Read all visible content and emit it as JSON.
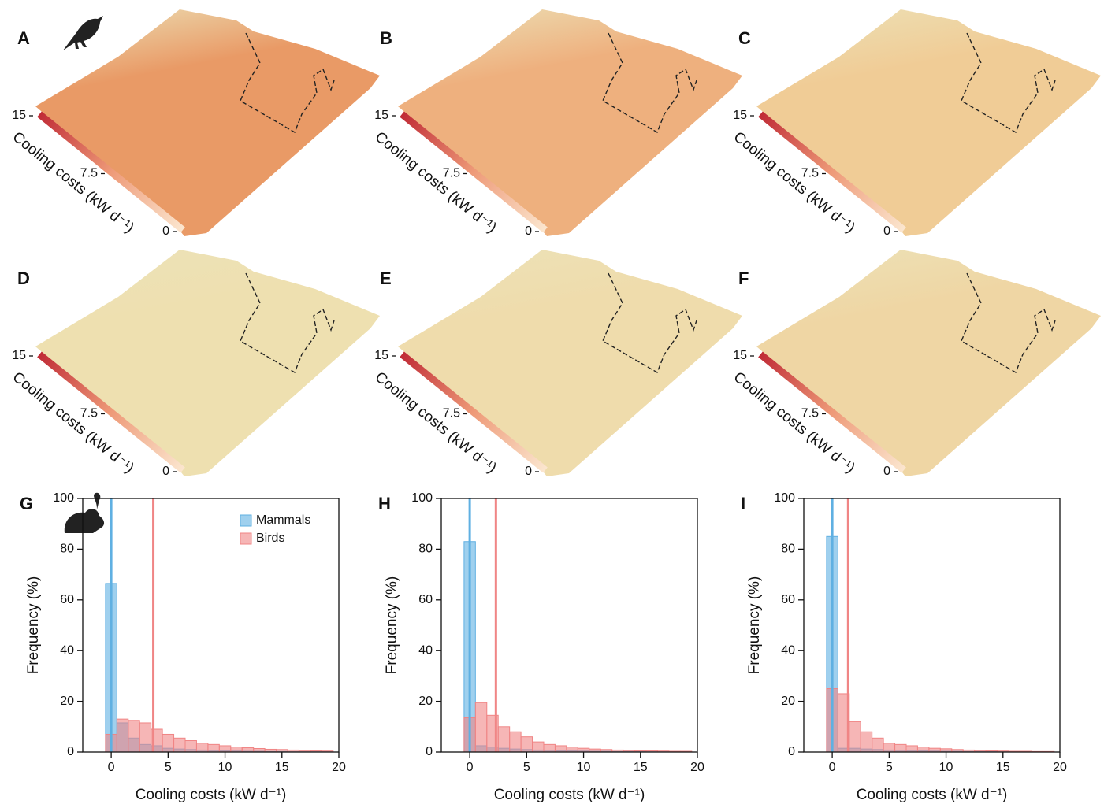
{
  "chart_data": [
    {
      "type": "map",
      "panel": "A",
      "icon": "bird",
      "fill": "#e99a66",
      "colorbar": {
        "label": "Cooling costs (kW d⁻¹)",
        "lim": [
          0,
          15
        ],
        "ticks": [
          15,
          7.5,
          0
        ]
      }
    },
    {
      "type": "map",
      "panel": "B",
      "fill": "#eeb07e",
      "colorbar": {
        "label": "Cooling costs (kW d⁻¹)",
        "lim": [
          0,
          15
        ],
        "ticks": [
          15,
          7.5,
          0
        ]
      }
    },
    {
      "type": "map",
      "panel": "C",
      "fill": "#f0cc96",
      "colorbar": {
        "label": "Cooling costs (kW d⁻¹)",
        "lim": [
          0,
          15
        ],
        "ticks": [
          15,
          7.5,
          0
        ]
      }
    },
    {
      "type": "map",
      "panel": "D",
      "icon": "mouse",
      "fill": "#eee0b0",
      "colorbar": {
        "label": "Cooling costs (kW d⁻¹)",
        "lim": [
          0,
          15
        ],
        "ticks": [
          15,
          7.5,
          0
        ]
      }
    },
    {
      "type": "map",
      "panel": "E",
      "fill": "#efdcac",
      "colorbar": {
        "label": "Cooling costs (kW d⁻¹)",
        "lim": [
          0,
          15
        ],
        "ticks": [
          15,
          7.5,
          0
        ]
      }
    },
    {
      "type": "map",
      "panel": "F",
      "fill": "#efd6a4",
      "colorbar": {
        "label": "Cooling costs (kW d⁻¹)",
        "lim": [
          0,
          15
        ],
        "ticks": [
          15,
          7.5,
          0
        ]
      }
    },
    {
      "type": "histogram",
      "panel": "G",
      "xlabel": "Cooling costs (kW d⁻¹)",
      "ylabel": "Frequency (%)",
      "bins": [
        -0.5,
        0.5,
        1.5,
        2.5,
        3.5,
        4.5,
        5.5,
        6.5,
        7.5,
        8.5,
        9.5,
        10.5,
        11.5,
        12.5,
        13.5,
        14.5,
        15.5,
        16.5,
        17.5,
        18.5,
        19.5
      ],
      "series": [
        {
          "name": "Mammals",
          "color": "#5fb0e2",
          "mean": 0.0,
          "values": [
            66.5,
            11.5,
            5.5,
            3,
            2.5,
            1.5,
            1.2,
            1,
            0.8,
            0.6,
            0.5,
            0.4,
            0.3,
            0.3,
            0.2,
            0.2,
            0.1,
            0.1,
            0.1,
            0.1
          ]
        },
        {
          "name": "Birds",
          "color": "#f08585",
          "mean": 3.7,
          "values": [
            7,
            13,
            12.5,
            11.5,
            9,
            7,
            5.5,
            4.5,
            3.5,
            3,
            2.5,
            2,
            1.7,
            1.4,
            1.1,
            1,
            0.8,
            0.6,
            0.5,
            0.4
          ]
        }
      ],
      "xlim": [
        -2.5,
        20
      ],
      "xticks": [
        0,
        5,
        10,
        15,
        20
      ],
      "ylim": [
        0,
        100
      ],
      "yticks": [
        0,
        20,
        40,
        60,
        80,
        100
      ],
      "legend": "upper right"
    },
    {
      "type": "histogram",
      "panel": "H",
      "xlabel": "Cooling costs (kW d⁻¹)",
      "ylabel": "Frequency (%)",
      "bins": [
        -0.5,
        0.5,
        1.5,
        2.5,
        3.5,
        4.5,
        5.5,
        6.5,
        7.5,
        8.5,
        9.5,
        10.5,
        11.5,
        12.5,
        13.5,
        14.5,
        15.5,
        16.5,
        17.5,
        18.5,
        19.5
      ],
      "series": [
        {
          "color": "#5fb0e2",
          "mean": 0.0,
          "values": [
            83,
            2.5,
            2,
            1.5,
            1.2,
            1,
            0.8,
            0.7,
            0.5,
            0.5,
            0.4,
            0.3,
            0.3,
            0.2,
            0.2,
            0.2,
            0.1,
            0.1,
            0.1,
            0.1
          ]
        },
        {
          "color": "#f08585",
          "mean": 2.3,
          "values": [
            13.5,
            19.5,
            14.5,
            10,
            8,
            6,
            4,
            3,
            2.5,
            2,
            1.5,
            1.2,
            1,
            0.8,
            0.6,
            0.5,
            0.5,
            0.4,
            0.3,
            0.3
          ]
        }
      ],
      "xlim": [
        -2.5,
        20
      ],
      "xticks": [
        0,
        5,
        10,
        15,
        20
      ],
      "ylim": [
        0,
        100
      ],
      "yticks": [
        0,
        20,
        40,
        60,
        80,
        100
      ]
    },
    {
      "type": "histogram",
      "panel": "I",
      "xlabel": "Cooling costs (kW d⁻¹)",
      "ylabel": "Frequency (%)",
      "bins": [
        -0.5,
        0.5,
        1.5,
        2.5,
        3.5,
        4.5,
        5.5,
        6.5,
        7.5,
        8.5,
        9.5,
        10.5,
        11.5,
        12.5,
        13.5,
        14.5,
        15.5,
        16.5,
        17.5,
        18.5,
        19.5
      ],
      "series": [
        {
          "color": "#5fb0e2",
          "mean": 0.0,
          "values": [
            85,
            1.5,
            1.5,
            1.2,
            1,
            0.8,
            0.7,
            0.6,
            0.5,
            0.4,
            0.3,
            0.3,
            0.2,
            0.2,
            0.2,
            0.1,
            0.1,
            0.1,
            0.1,
            0.1
          ]
        },
        {
          "color": "#f08585",
          "mean": 1.4,
          "values": [
            25,
            23,
            12,
            8,
            5.5,
            3.5,
            3,
            2.5,
            2,
            1.5,
            1.3,
            1,
            0.8,
            0.6,
            0.5,
            0.4,
            0.3,
            0.3,
            0.2,
            0.2
          ]
        }
      ],
      "xlim": [
        -2.5,
        20
      ],
      "xticks": [
        0,
        5,
        10,
        15,
        20
      ],
      "ylim": [
        0,
        100
      ],
      "yticks": [
        0,
        20,
        40,
        60,
        80,
        100
      ]
    }
  ]
}
